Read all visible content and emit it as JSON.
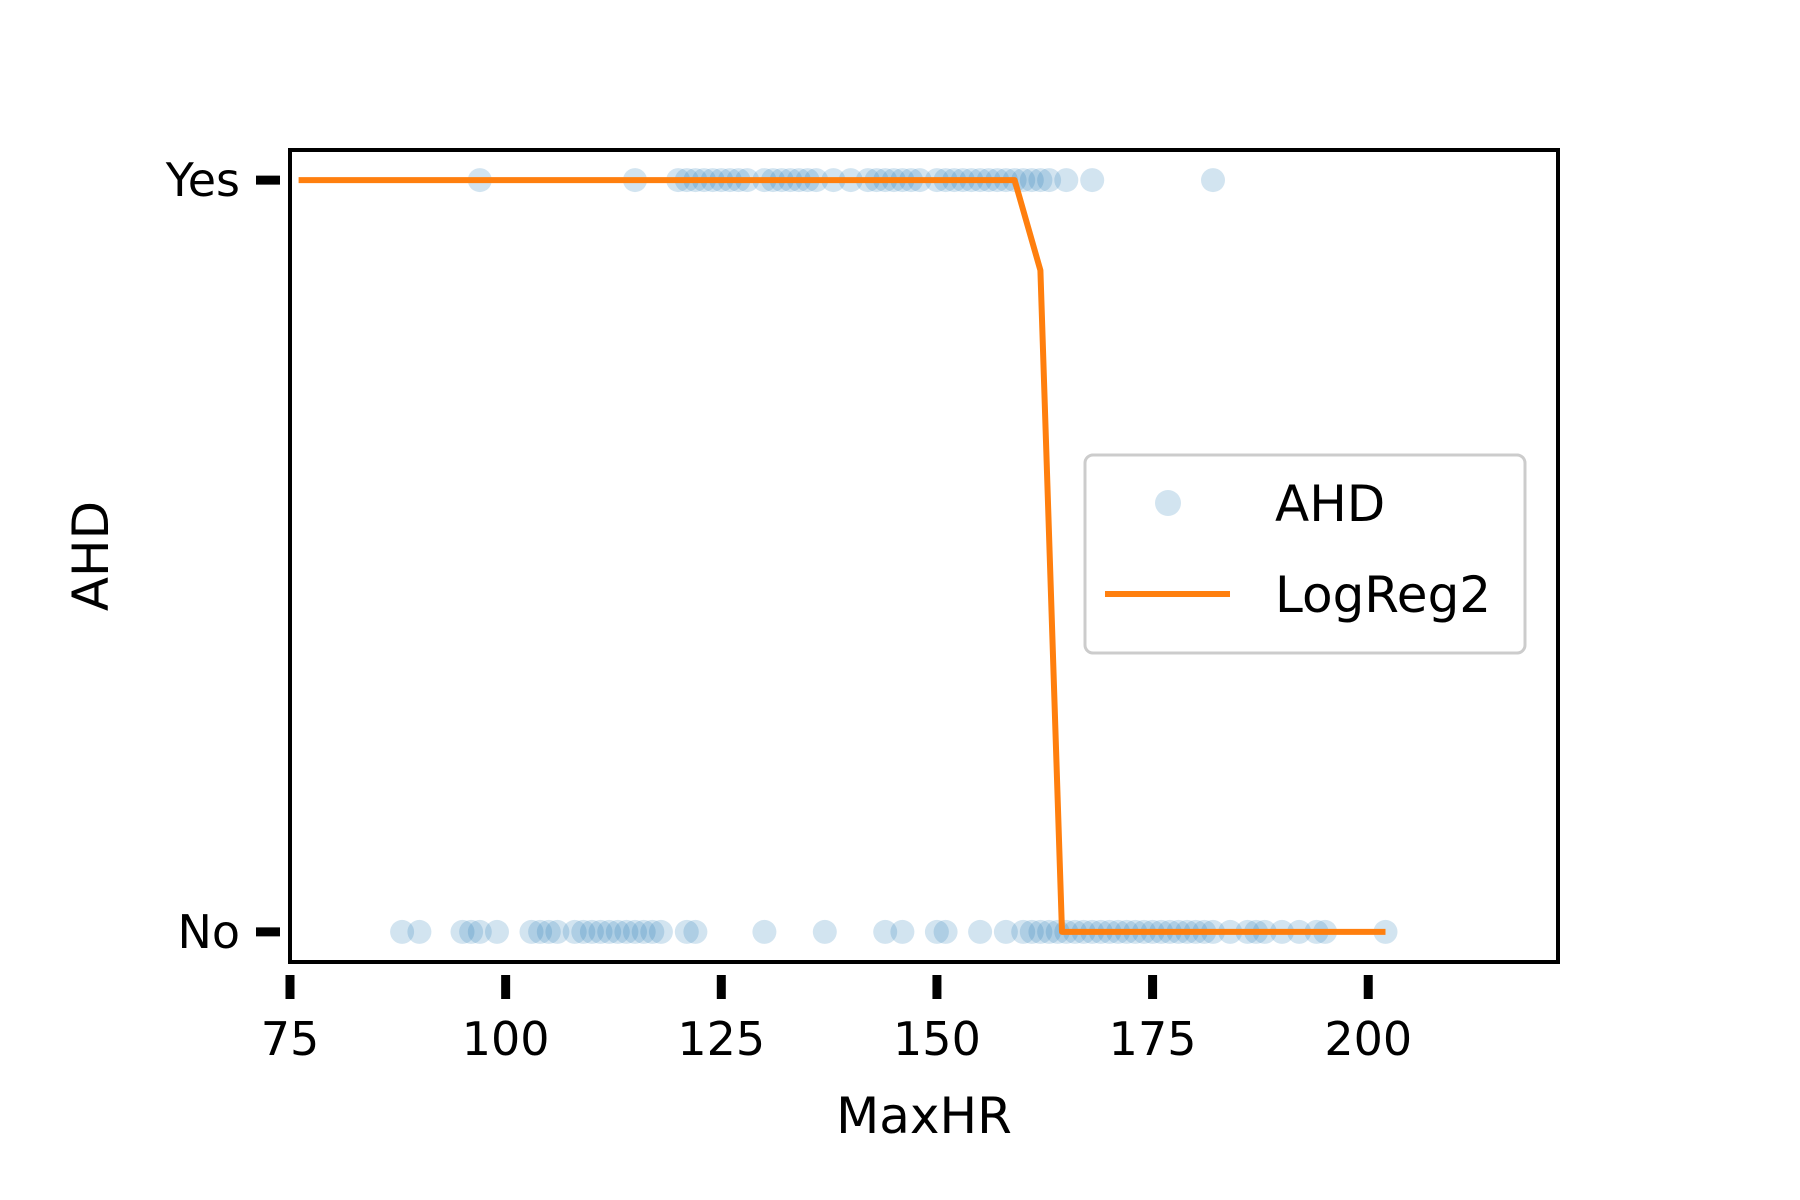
{
  "chart_data": {
    "type": "scatter",
    "xlabel": "MaxHR",
    "ylabel": "AHD",
    "xlim": [
      75,
      222
    ],
    "ylim": [
      -0.04,
      1.04
    ],
    "x_ticks": [
      75,
      100,
      125,
      150,
      175,
      200
    ],
    "x_tick_labels": [
      "75",
      "100",
      "125",
      "150",
      "175",
      "200"
    ],
    "y_ticks": [
      0,
      1
    ],
    "y_tick_labels": [
      "No",
      "Yes"
    ],
    "legend": {
      "location": "center-right",
      "entries": [
        "AHD",
        "LogReg2"
      ]
    },
    "grid": false,
    "colors": {
      "scatter": "#1f77b4",
      "line": "#ff7f0e"
    },
    "series": [
      {
        "name": "AHD",
        "kind": "scatter",
        "points": [
          [
            97,
            1
          ],
          [
            115,
            1
          ],
          [
            120,
            1
          ],
          [
            121,
            1
          ],
          [
            122,
            1
          ],
          [
            123,
            1
          ],
          [
            124,
            1
          ],
          [
            125,
            1
          ],
          [
            126,
            1
          ],
          [
            127,
            1
          ],
          [
            128,
            1
          ],
          [
            130,
            1
          ],
          [
            131,
            1
          ],
          [
            132,
            1
          ],
          [
            133,
            1
          ],
          [
            134,
            1
          ],
          [
            135,
            1
          ],
          [
            136,
            1
          ],
          [
            138,
            1
          ],
          [
            140,
            1
          ],
          [
            142,
            1
          ],
          [
            143,
            1
          ],
          [
            144,
            1
          ],
          [
            145,
            1
          ],
          [
            146,
            1
          ],
          [
            147,
            1
          ],
          [
            148,
            1
          ],
          [
            150,
            1
          ],
          [
            151,
            1
          ],
          [
            152,
            1
          ],
          [
            153,
            1
          ],
          [
            154,
            1
          ],
          [
            155,
            1
          ],
          [
            156,
            1
          ],
          [
            157,
            1
          ],
          [
            158,
            1
          ],
          [
            159,
            1
          ],
          [
            160,
            1
          ],
          [
            161,
            1
          ],
          [
            162,
            1
          ],
          [
            163,
            1
          ],
          [
            165,
            1
          ],
          [
            168,
            1
          ],
          [
            182,
            1
          ],
          [
            88,
            0
          ],
          [
            90,
            0
          ],
          [
            95,
            0
          ],
          [
            96,
            0
          ],
          [
            97,
            0
          ],
          [
            99,
            0
          ],
          [
            103,
            0
          ],
          [
            104,
            0
          ],
          [
            105,
            0
          ],
          [
            106,
            0
          ],
          [
            108,
            0
          ],
          [
            109,
            0
          ],
          [
            110,
            0
          ],
          [
            111,
            0
          ],
          [
            112,
            0
          ],
          [
            113,
            0
          ],
          [
            114,
            0
          ],
          [
            115,
            0
          ],
          [
            116,
            0
          ],
          [
            117,
            0
          ],
          [
            118,
            0
          ],
          [
            121,
            0
          ],
          [
            122,
            0
          ],
          [
            130,
            0
          ],
          [
            137,
            0
          ],
          [
            144,
            0
          ],
          [
            146,
            0
          ],
          [
            150,
            0
          ],
          [
            151,
            0
          ],
          [
            155,
            0
          ],
          [
            158,
            0
          ],
          [
            160,
            0
          ],
          [
            161,
            0
          ],
          [
            162,
            0
          ],
          [
            163,
            0
          ],
          [
            164,
            0
          ],
          [
            165,
            0
          ],
          [
            166,
            0
          ],
          [
            167,
            0
          ],
          [
            168,
            0
          ],
          [
            169,
            0
          ],
          [
            170,
            0
          ],
          [
            171,
            0
          ],
          [
            172,
            0
          ],
          [
            173,
            0
          ],
          [
            174,
            0
          ],
          [
            175,
            0
          ],
          [
            176,
            0
          ],
          [
            177,
            0
          ],
          [
            178,
            0
          ],
          [
            179,
            0
          ],
          [
            180,
            0
          ],
          [
            181,
            0
          ],
          [
            182,
            0
          ],
          [
            184,
            0
          ],
          [
            186,
            0
          ],
          [
            187,
            0
          ],
          [
            188,
            0
          ],
          [
            190,
            0
          ],
          [
            192,
            0
          ],
          [
            194,
            0
          ],
          [
            195,
            0
          ],
          [
            202,
            0
          ]
        ]
      },
      {
        "name": "LogReg2",
        "kind": "line",
        "points": [
          [
            76,
            1
          ],
          [
            159,
            1
          ],
          [
            162,
            0.88
          ],
          [
            164.5,
            0
          ],
          [
            202,
            0
          ]
        ]
      }
    ]
  }
}
